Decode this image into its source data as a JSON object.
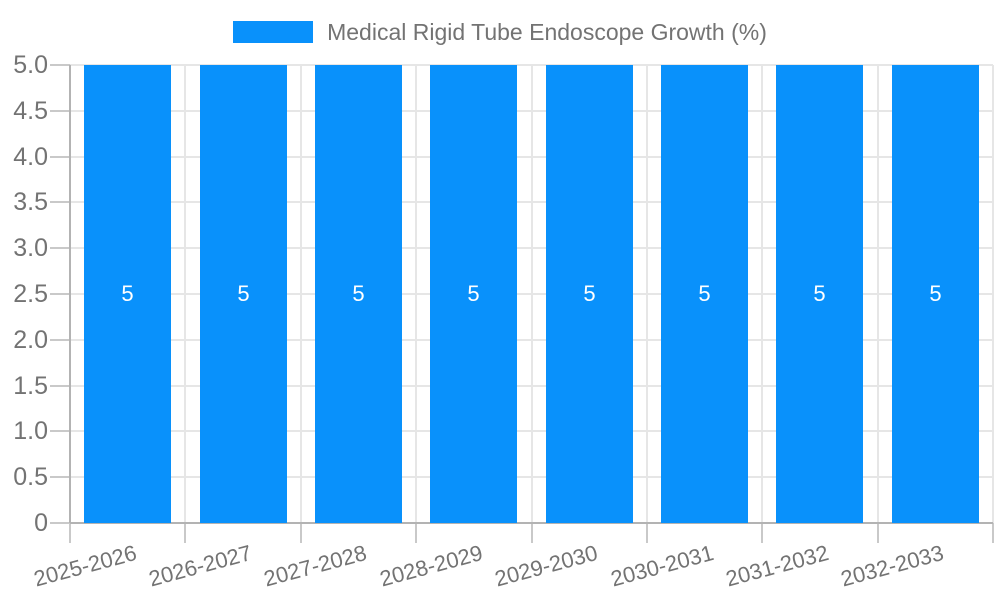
{
  "legend": {
    "label": "Medical Rigid Tube Endoscope Growth (%)"
  },
  "chart_data": {
    "type": "bar",
    "title": "Medical Rigid Tube Endoscope Growth (%)",
    "categories": [
      "2025-2026",
      "2026-2027",
      "2027-2028",
      "2028-2029",
      "2029-2030",
      "2030-2031",
      "2031-2032",
      "2032-2033"
    ],
    "series": [
      {
        "name": "Medical Rigid Tube Endoscope Growth (%)",
        "values": [
          5,
          5,
          5,
          5,
          5,
          5,
          5,
          5
        ]
      }
    ],
    "bar_value_labels": [
      "5",
      "5",
      "5",
      "5",
      "5",
      "5",
      "5",
      "5"
    ],
    "xlabel": "",
    "ylabel": "",
    "ylim": [
      0,
      5
    ],
    "ytick_labels": [
      "0",
      "0.5",
      "1.0",
      "1.5",
      "2.0",
      "2.5",
      "3.0",
      "3.5",
      "4.0",
      "4.5",
      "5.0"
    ],
    "grid": true,
    "legend_position": "top-center",
    "value_label_position": "center",
    "colors": {
      "bar": "#0991FB",
      "grid": "#e6e6e6",
      "axis": "#b3b3b3",
      "tick": "#c9c9c9",
      "label": "#737373",
      "value_label": "#ffffff",
      "background": "#ffffff"
    }
  }
}
